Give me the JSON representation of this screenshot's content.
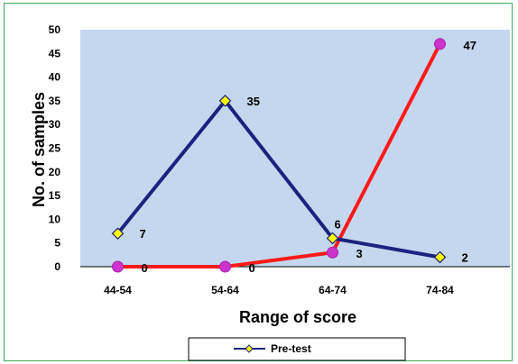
{
  "chart_data": {
    "type": "line",
    "xlabel": "Range of score",
    "ylabel": "No. of samples",
    "ylim": [
      0,
      50
    ],
    "yticks": [
      0,
      5,
      10,
      15,
      20,
      25,
      30,
      35,
      40,
      45,
      50
    ],
    "categories": [
      "44-54",
      "54-64",
      "64-74",
      "74-84"
    ],
    "grid": false,
    "legend_position": "bottom",
    "legend_entries": [
      "Pre-test"
    ],
    "series": [
      {
        "name": "Pre-test",
        "values": [
          7,
          35,
          6,
          2
        ],
        "color": "#1a237e",
        "marker": "diamond",
        "marker_color": "#ffff00"
      },
      {
        "values": [
          0,
          0,
          3,
          47
        ],
        "color": "#ff1a1a",
        "marker": "circle",
        "marker_color": "#cc33cc"
      }
    ],
    "data_labels": [
      [
        "7",
        "35",
        "6",
        "2"
      ],
      [
        "0",
        "0",
        "3",
        "47"
      ]
    ],
    "plot_background": "#c5d7ee"
  }
}
